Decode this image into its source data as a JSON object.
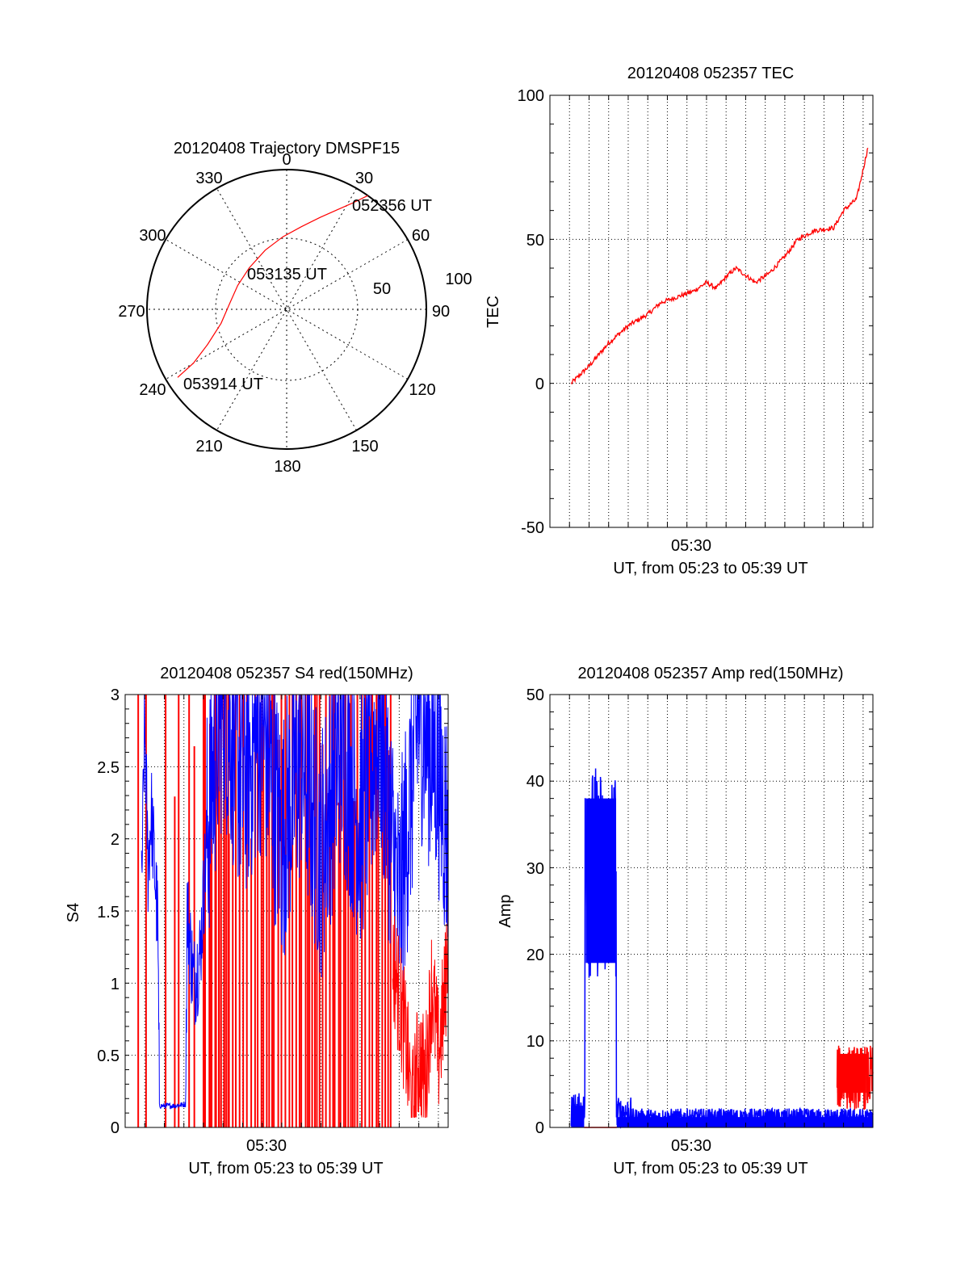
{
  "chart_data": [
    {
      "type": "polar",
      "title": "20120408 Trajectory DMSPF15",
      "angle_labels": [
        "0",
        "30",
        "60",
        "90",
        "120",
        "150",
        "180",
        "210",
        "240",
        "270",
        "300",
        "330"
      ],
      "radial_labels": [
        "50",
        "100"
      ],
      "rlim": [
        0,
        100
      ],
      "grid": true,
      "series": [
        {
          "color": "#ff0000",
          "points": [
            [
              35.5,
              100
            ],
            [
              32,
              90
            ],
            [
              27,
              80
            ],
            [
              20,
              70
            ],
            [
              10,
              60
            ],
            [
              357,
              52
            ],
            [
              340,
              45
            ],
            [
              318,
              40
            ],
            [
              296,
              39
            ],
            [
              276,
              41
            ],
            [
              258,
              48
            ],
            [
              246,
              62
            ],
            [
              240,
              77
            ],
            [
              238,
              92
            ]
          ]
        }
      ],
      "annotations": [
        {
          "text": "052356 UT",
          "angle": 36,
          "r": 100
        },
        {
          "text": "053135 UT",
          "angle": 340,
          "r": 38
        },
        {
          "text": "053914 UT",
          "angle": 238,
          "r": 93
        }
      ]
    },
    {
      "type": "line",
      "title": "20120408 052357 TEC",
      "xlabel": "UT, from 05:23 to 05:39 UT",
      "ylabel": "TEC",
      "xlim": [
        "05:23:00",
        "05:39:30"
      ],
      "ylim": [
        -50,
        100
      ],
      "yticks": [
        "-50",
        "0",
        "50",
        "100"
      ],
      "xticks": [
        "05:30"
      ],
      "grid": true,
      "series": [
        {
          "color": "#ff0000",
          "x": [
            "05:24:05",
            "05:25:00",
            "05:26:00",
            "05:27:00",
            "05:28:00",
            "05:28:40",
            "05:29:30",
            "05:30:20",
            "05:31:00",
            "05:31:30",
            "05:32:00",
            "05:32:30",
            "05:33:30",
            "05:34:10",
            "05:35:00",
            "05:35:40",
            "05:36:30",
            "05:37:30",
            "05:38:00",
            "05:38:40",
            "05:39:15"
          ],
          "y": [
            0,
            6,
            14,
            20,
            24,
            28,
            30,
            32,
            35,
            33,
            37,
            40,
            35,
            38,
            44,
            50,
            53,
            54,
            60,
            64,
            82
          ]
        }
      ]
    },
    {
      "type": "line",
      "title": "20120408 052357 S4 red(150MHz)",
      "xlabel": "UT, from 05:23 to 05:39 UT",
      "ylabel": "S4",
      "xlim": [
        "05:23:00",
        "05:39:30"
      ],
      "ylim": [
        0,
        3
      ],
      "yticks": [
        "0",
        "0.5",
        "1",
        "1.5",
        "2",
        "2.5",
        "3"
      ],
      "xticks": [
        "05:30"
      ],
      "grid": true,
      "series": [
        {
          "color": "#0000ff",
          "x": [
            "05:23:50",
            "05:24:00",
            "05:24:10",
            "05:24:20",
            "05:24:40",
            "05:24:45",
            "05:25:30",
            "05:26:05",
            "05:26:10",
            "05:26:30",
            "05:26:50",
            "05:27:10",
            "05:27:30",
            "05:28:00",
            "05:29:00",
            "05:30:00",
            "05:31:00",
            "05:32:00",
            "05:33:00",
            "05:34:00",
            "05:35:00",
            "05:36:00",
            "05:37:00",
            "05:38:00",
            "05:39:00",
            "05:39:30"
          ],
          "y": [
            1.6,
            2.8,
            1.8,
            2.2,
            1.4,
            0.15,
            0.15,
            0.16,
            1.5,
            1.0,
            1.2,
            2.0,
            2.5,
            3.0,
            2.4,
            2.8,
            2.0,
            2.6,
            1.9,
            2.7,
            2.1,
            2.8,
            1.5,
            2.9,
            2.5,
            2.0
          ]
        },
        {
          "color": "#ff0000",
          "x": [
            "05:36:40",
            "05:37:00",
            "05:37:20",
            "05:37:40",
            "05:38:00",
            "05:38:20",
            "05:38:40",
            "05:39:00",
            "05:39:20",
            "05:39:30"
          ],
          "y": [
            1.2,
            0.9,
            0.6,
            0.1,
            0.5,
            0.3,
            1.0,
            0.5,
            0.9,
            1.4
          ]
        }
      ]
    },
    {
      "type": "line",
      "title": "20120408 052357 Amp red(150MHz)",
      "xlabel": "UT, from 05:23 to 05:39 UT",
      "ylabel": "Amp",
      "xlim": [
        "05:23:00",
        "05:39:30"
      ],
      "ylim": [
        0,
        50
      ],
      "yticks": [
        "0",
        "10",
        "20",
        "30",
        "40",
        "50"
      ],
      "xticks": [
        "05:30"
      ],
      "grid": true,
      "series": [
        {
          "color": "#0000ff",
          "x": [
            "05:24:05",
            "05:24:40",
            "05:24:50",
            "05:25:30",
            "05:26:00",
            "05:26:20",
            "05:26:25",
            "05:30:00",
            "05:35:00",
            "05:39:30"
          ],
          "y": [
            2,
            2,
            30,
            30,
            28,
            28,
            1,
            1,
            1,
            1
          ]
        },
        {
          "color": "#ff0000",
          "x": [
            "05:24:45",
            "05:26:25",
            "05:37:40",
            "05:38:00",
            "05:39:00",
            "05:39:30"
          ],
          "y": [
            0,
            0,
            4,
            8,
            8,
            4
          ]
        }
      ]
    }
  ]
}
